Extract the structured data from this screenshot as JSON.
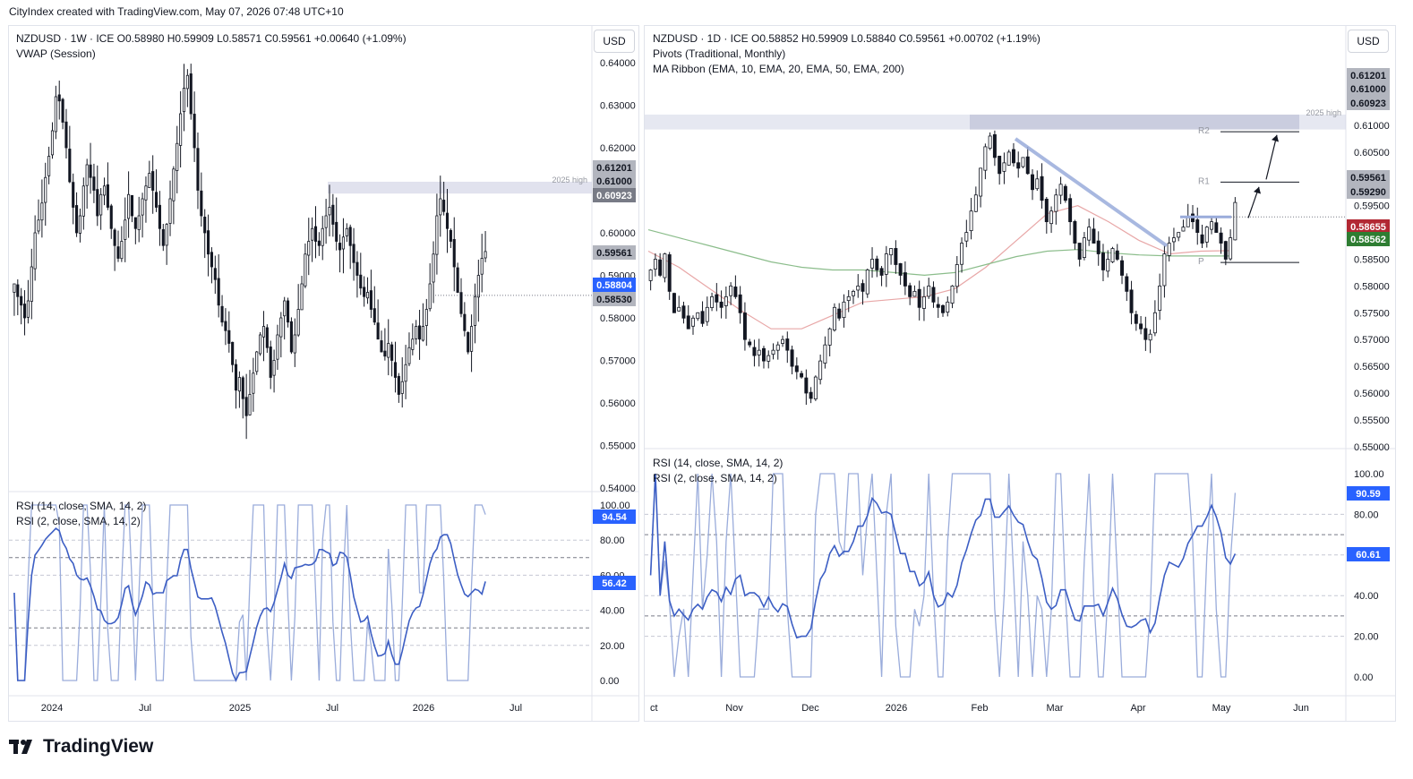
{
  "credit": "CityIndex created with TradingView.com, May 07, 2026 07:48 UTC+10",
  "brand": "TradingView",
  "colors": {
    "up": "#ffffff",
    "down": "#131722",
    "rsi14": "#3c5ec4",
    "rsi2": "#9aacdb",
    "badge_grey": "#b2b5be",
    "badge_blue": "#2962ff",
    "badge_red": "#b22833",
    "badge_green": "#2e7d32",
    "ema_red": "#e8a7a7",
    "ema_green": "#8bbd8b",
    "trend": "#9aacdb"
  },
  "left": {
    "legend_main": "NZDUSD · 1W · ICE  O0.58980  H0.59909  L0.58571  C0.59561  +0.00640 (+1.09%)",
    "legend_ind1": "VWAP (Session)",
    "rsi_legend_1": "RSI (14, close, SMA, 14, 2)",
    "rsi_legend_2": "RSI (2, close, SMA, 14, 2)",
    "currency": "USD",
    "annotation": "2025 high",
    "price_ticks": [
      "0.64000",
      "0.63000",
      "0.62000",
      "0.61000",
      "0.60000",
      "0.59000",
      "0.58000",
      "0.57000",
      "0.56000",
      "0.55000",
      "0.54000"
    ],
    "rsi_ticks": [
      "100.00",
      "80.00",
      "60.00",
      "40.00",
      "20.00",
      "0.00"
    ],
    "time_labels": [
      "2024",
      "Jul",
      "2025",
      "Jul",
      "2026",
      "Jul"
    ],
    "badges": [
      {
        "text": "0.61201",
        "type": "grey"
      },
      {
        "text": "0.61000",
        "type": "grey"
      },
      {
        "text": "0.60923",
        "type": "dark"
      },
      {
        "text": "0.59561",
        "type": "grey"
      },
      {
        "text": "0.58804",
        "type": "blue"
      },
      {
        "text": "0.58530",
        "type": "grey"
      }
    ],
    "rsi_badges": [
      {
        "text": "94.54",
        "type": "blue"
      },
      {
        "text": "56.42",
        "type": "blue"
      }
    ]
  },
  "right": {
    "legend_main": "NZDUSD · 1D · ICE  O0.58852  H0.59909  L0.58840  C0.59561  +0.00702 (+1.19%)",
    "legend_ind1": "Pivots (Traditional, Monthly)",
    "legend_ind2": "MA Ribbon (EMA, 10, EMA, 20, EMA, 50, EMA, 200)",
    "rsi_legend_1": "RSI (14, close, SMA, 14, 2)",
    "rsi_legend_2": "RSI (2, close, SMA, 14, 2)",
    "currency": "USD",
    "annotation": "2025 high",
    "pivot_labels": [
      "R2",
      "R1",
      "P"
    ],
    "price_ticks": [
      "0.61000",
      "0.60500",
      "0.60000",
      "0.59500",
      "0.59000",
      "0.58500",
      "0.58000",
      "0.57500",
      "0.57000",
      "0.56500",
      "0.56000",
      "0.55500",
      "0.55000"
    ],
    "rsi_ticks": [
      "100.00",
      "80.00",
      "60.00",
      "40.00",
      "20.00",
      "0.00"
    ],
    "time_labels": [
      "ct",
      "Nov",
      "Dec",
      "2026",
      "Feb",
      "Mar",
      "Apr",
      "May",
      "Jun"
    ],
    "badges": [
      {
        "text": "0.61201",
        "type": "grey"
      },
      {
        "text": "0.61000",
        "type": "grey"
      },
      {
        "text": "0.60923",
        "type": "grey"
      },
      {
        "text": "0.59561",
        "type": "grey"
      },
      {
        "text": "0.59290",
        "type": "grey"
      },
      {
        "text": "0.58655",
        "type": "red"
      },
      {
        "text": "0.58562",
        "type": "green"
      }
    ],
    "rsi_badges": [
      {
        "text": "90.59",
        "type": "blue"
      },
      {
        "text": "60.61",
        "type": "blue"
      }
    ]
  },
  "chart_data": [
    {
      "type": "candlestick",
      "title": "NZDUSD · 1W · ICE",
      "ylim": [
        0.54,
        0.64
      ],
      "y_ticks": [
        0.64,
        0.63,
        0.62,
        0.61,
        0.6,
        0.59,
        0.58,
        0.57,
        0.56,
        0.55,
        0.54
      ],
      "x_labels": [
        "2024",
        "Jul",
        "2025",
        "Jul",
        "2026",
        "Jul"
      ],
      "last": {
        "open": 0.5898,
        "high": 0.59909,
        "low": 0.58571,
        "close": 0.59561,
        "change": 0.0064,
        "change_pct": 1.09
      },
      "close_series": [
        0.588,
        0.585,
        0.583,
        0.58,
        0.584,
        0.592,
        0.6,
        0.603,
        0.607,
        0.613,
        0.618,
        0.624,
        0.632,
        0.631,
        0.626,
        0.62,
        0.612,
        0.606,
        0.6,
        0.604,
        0.611,
        0.616,
        0.613,
        0.61,
        0.604,
        0.609,
        0.611,
        0.606,
        0.601,
        0.597,
        0.594,
        0.598,
        0.603,
        0.609,
        0.604,
        0.601,
        0.604,
        0.608,
        0.611,
        0.614,
        0.61,
        0.606,
        0.601,
        0.597,
        0.602,
        0.608,
        0.615,
        0.621,
        0.628,
        0.634,
        0.637,
        0.628,
        0.62,
        0.61,
        0.604,
        0.6,
        0.595,
        0.592,
        0.589,
        0.583,
        0.579,
        0.577,
        0.574,
        0.569,
        0.563,
        0.566,
        0.561,
        0.557,
        0.562,
        0.567,
        0.572,
        0.576,
        0.578,
        0.573,
        0.566,
        0.57,
        0.576,
        0.58,
        0.584,
        0.579,
        0.572,
        0.576,
        0.582,
        0.588,
        0.595,
        0.598,
        0.601,
        0.598,
        0.597,
        0.601,
        0.604,
        0.606,
        0.602,
        0.598,
        0.596,
        0.599,
        0.601,
        0.597,
        0.593,
        0.59,
        0.587,
        0.585,
        0.586,
        0.582,
        0.579,
        0.575,
        0.572,
        0.571,
        0.574,
        0.57,
        0.566,
        0.562,
        0.565,
        0.569,
        0.573,
        0.575,
        0.578,
        0.575,
        0.578,
        0.582,
        0.588,
        0.595,
        0.604,
        0.608,
        0.605,
        0.601,
        0.598,
        0.592,
        0.586,
        0.581,
        0.577,
        0.572,
        0.578,
        0.585,
        0.59,
        0.594,
        0.5956
      ],
      "annotations": [
        "2025 high"
      ]
    },
    {
      "type": "line",
      "title": "RSI (14, close, SMA, 14, 2) / RSI (2, close, SMA, 14, 2)",
      "ylim": [
        0,
        100
      ],
      "series": [
        {
          "name": "RSI (14, close, SMA, 14, 2)",
          "last": 56.42
        },
        {
          "name": "RSI (2, close, SMA, 14, 2)",
          "last": 94.54
        }
      ]
    },
    {
      "type": "candlestick",
      "title": "NZDUSD · 1D · ICE",
      "ylim": [
        0.545,
        0.6125
      ],
      "y_ticks": [
        0.61,
        0.605,
        0.6,
        0.595,
        0.59,
        0.585,
        0.58,
        0.575,
        0.57,
        0.565,
        0.56,
        0.555,
        0.55
      ],
      "x_labels": [
        "ct",
        "Nov",
        "Dec",
        "2026",
        "Feb",
        "Mar",
        "Apr",
        "May",
        "Jun"
      ],
      "last": {
        "open": 0.58852,
        "high": 0.59909,
        "low": 0.5884,
        "close": 0.59561,
        "change": 0.00702,
        "change_pct": 1.19
      },
      "close_series": [
        0.583,
        0.585,
        0.582,
        0.586,
        0.579,
        0.575,
        0.576,
        0.574,
        0.572,
        0.574,
        0.575,
        0.573,
        0.576,
        0.578,
        0.577,
        0.576,
        0.578,
        0.58,
        0.578,
        0.575,
        0.57,
        0.569,
        0.567,
        0.568,
        0.566,
        0.567,
        0.568,
        0.569,
        0.57,
        0.568,
        0.565,
        0.564,
        0.563,
        0.56,
        0.559,
        0.563,
        0.566,
        0.569,
        0.572,
        0.576,
        0.574,
        0.577,
        0.578,
        0.579,
        0.58,
        0.579,
        0.583,
        0.585,
        0.583,
        0.582,
        0.586,
        0.587,
        0.584,
        0.582,
        0.58,
        0.578,
        0.579,
        0.576,
        0.578,
        0.58,
        0.577,
        0.576,
        0.575,
        0.577,
        0.58,
        0.584,
        0.588,
        0.59,
        0.594,
        0.597,
        0.602,
        0.606,
        0.608,
        0.604,
        0.601,
        0.603,
        0.605,
        0.603,
        0.602,
        0.604,
        0.601,
        0.598,
        0.6,
        0.596,
        0.592,
        0.594,
        0.597,
        0.599,
        0.596,
        0.592,
        0.588,
        0.585,
        0.589,
        0.591,
        0.588,
        0.586,
        0.583,
        0.585,
        0.587,
        0.585,
        0.582,
        0.579,
        0.575,
        0.573,
        0.572,
        0.57,
        0.571,
        0.575,
        0.58,
        0.586,
        0.588,
        0.589,
        0.59,
        0.591,
        0.593,
        0.592,
        0.59,
        0.588,
        0.591,
        0.592,
        0.59,
        0.588,
        0.585,
        0.589,
        0.5956
      ],
      "pivots": {
        "R2": 0.6088,
        "R1": 0.5994,
        "P": 0.5844
      },
      "annotations": [
        "2025 high",
        "R2",
        "R1",
        "P"
      ]
    },
    {
      "type": "line",
      "title": "RSI (14, close, SMA, 14, 2) / RSI (2, close, SMA, 14, 2)",
      "ylim": [
        0,
        100
      ],
      "series": [
        {
          "name": "RSI (14, close, SMA, 14, 2)",
          "last": 60.61
        },
        {
          "name": "RSI (2, close, SMA, 14, 2)",
          "last": 90.59
        }
      ]
    }
  ]
}
